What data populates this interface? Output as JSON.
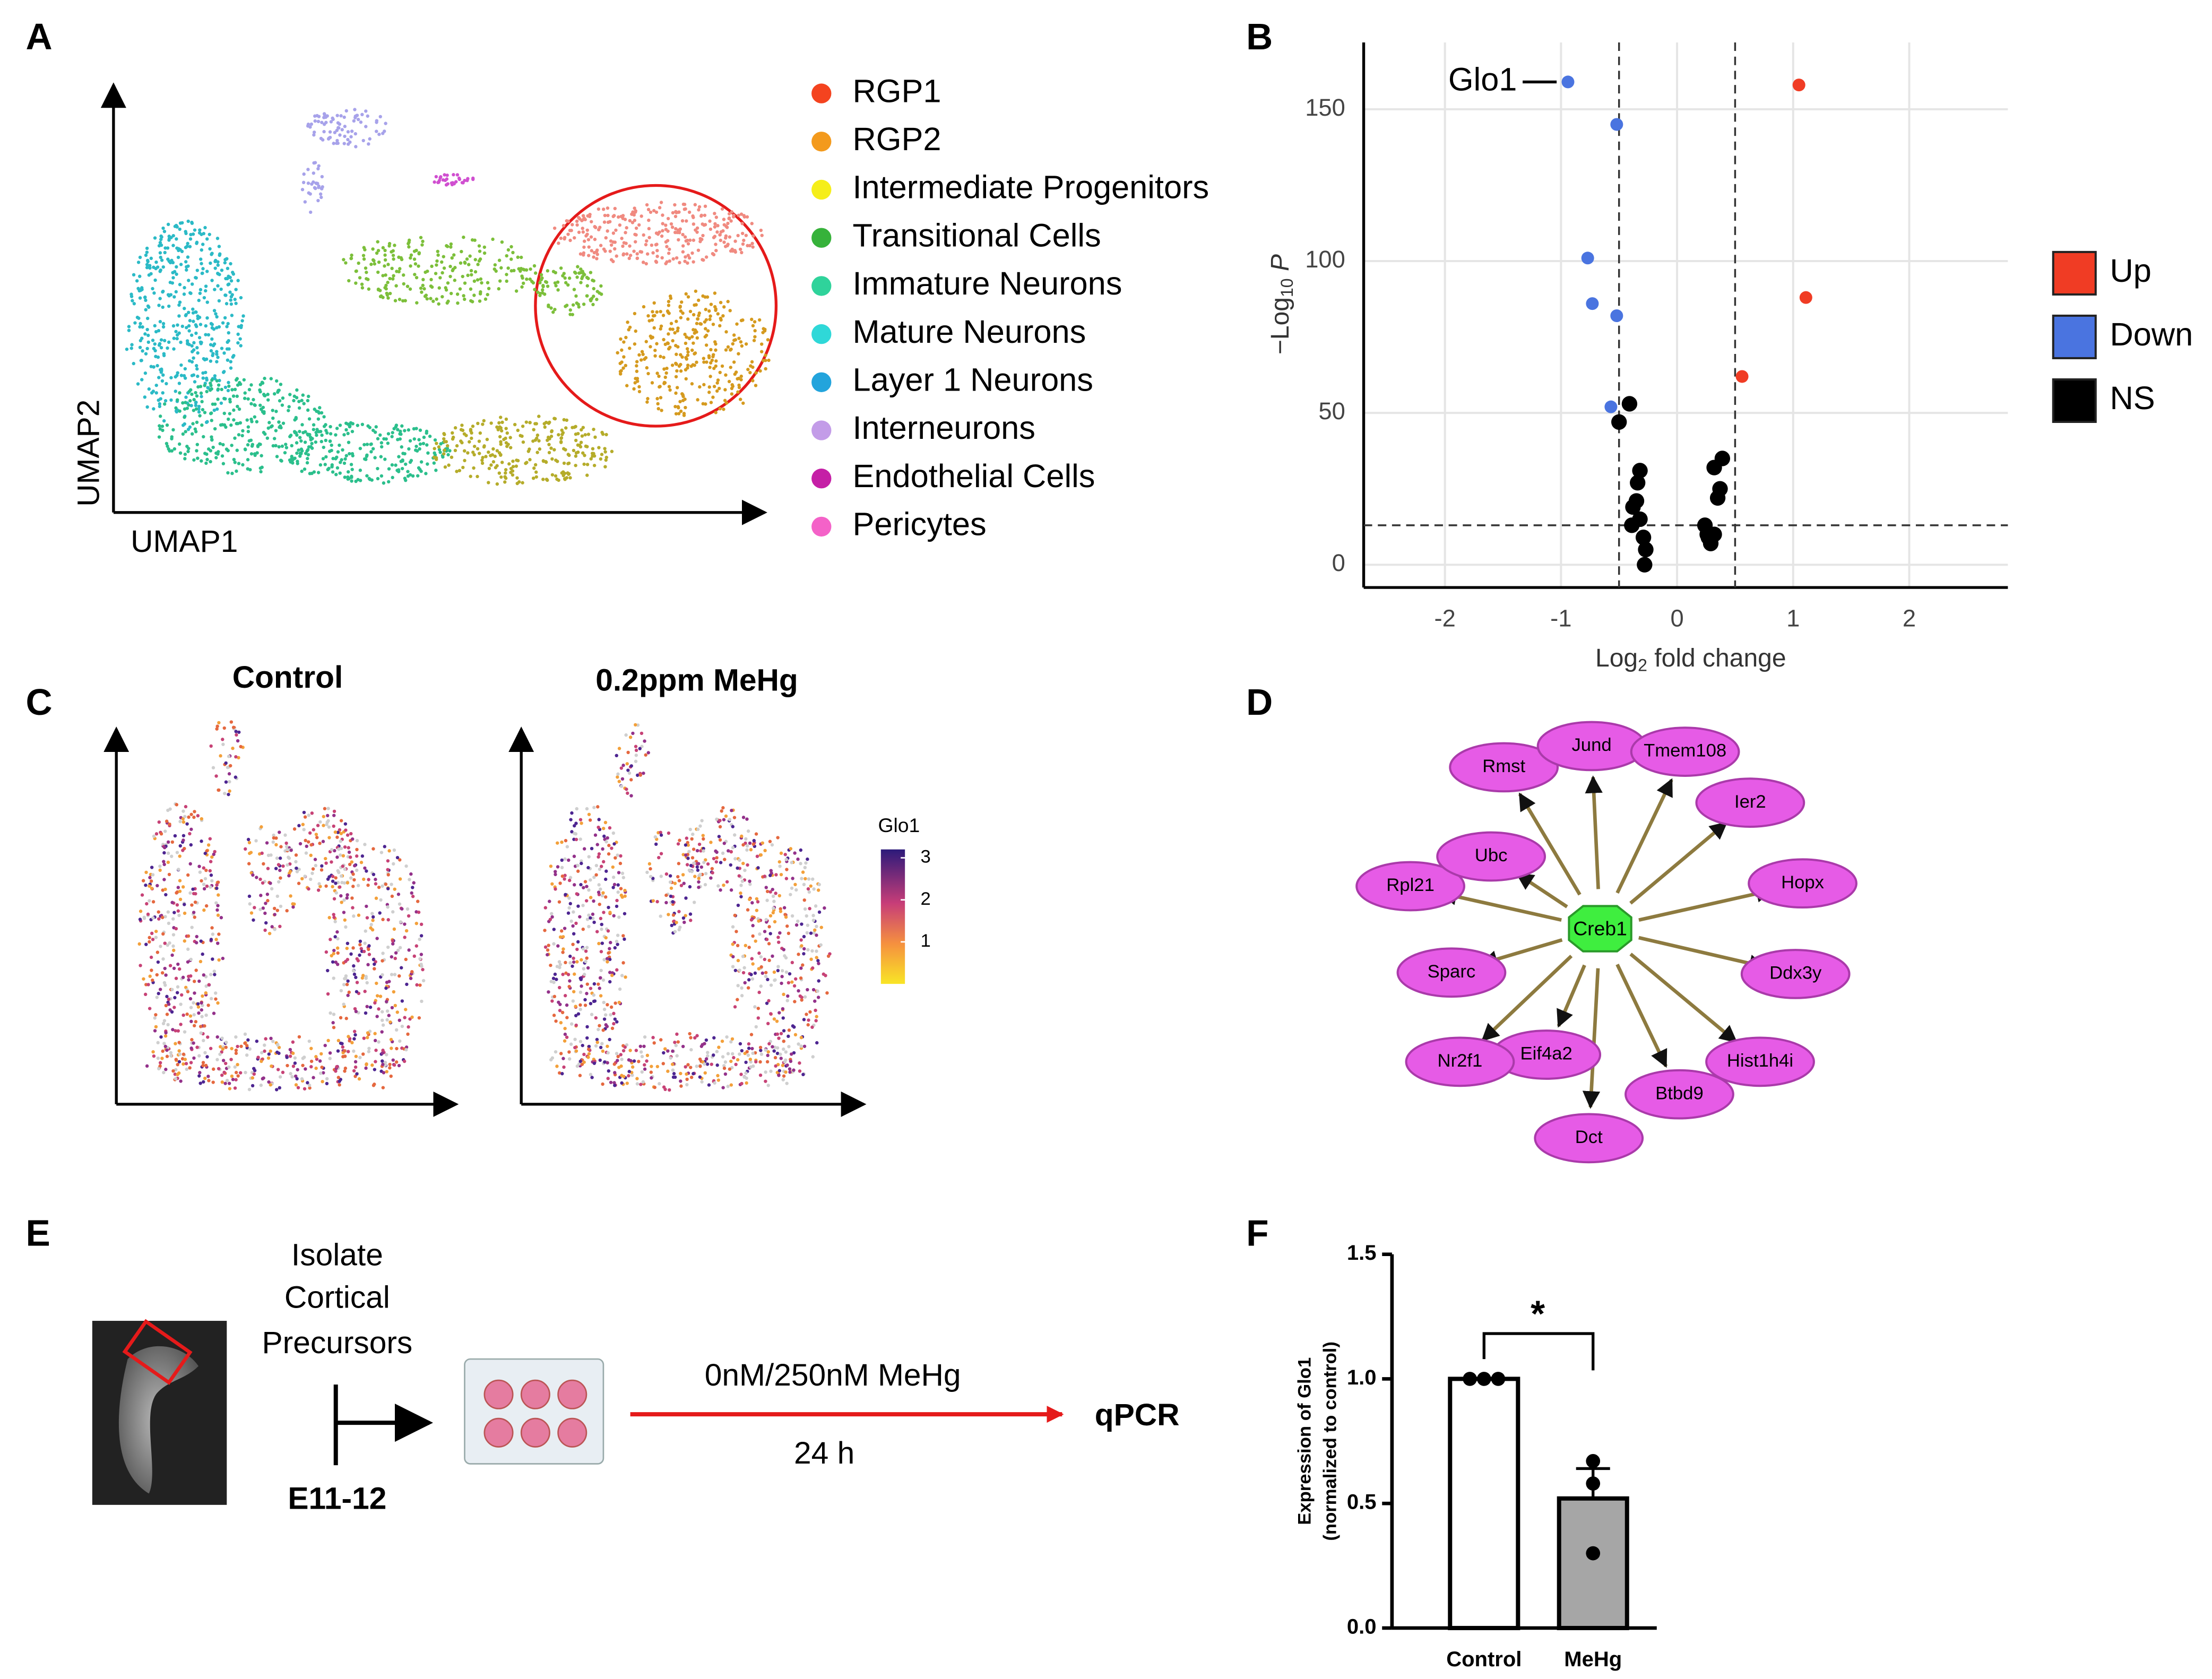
{
  "panel_labels": [
    "A",
    "B",
    "C",
    "D",
    "E",
    "F"
  ],
  "umap": {
    "x_label": "UMAP1",
    "y_label": "UMAP2",
    "legend": [
      {
        "name": "RGP1",
        "color": "#f4431f"
      },
      {
        "name": "RGP2",
        "color": "#f39a1d"
      },
      {
        "name": "Intermediate Progenitors",
        "color": "#f5ee1a"
      },
      {
        "name": "Transitional Cells",
        "color": "#36b23a"
      },
      {
        "name": "Immature Neurons",
        "color": "#2fd39b"
      },
      {
        "name": "Mature Neurons",
        "color": "#2fd8d8"
      },
      {
        "name": "Layer 1 Neurons",
        "color": "#23a4dc"
      },
      {
        "name": "Interneurons",
        "color": "#c39ce8"
      },
      {
        "name": "Endothelial Cells",
        "color": "#c51fa6"
      },
      {
        "name": "Pericytes",
        "color": "#f462c8"
      }
    ]
  },
  "feature_plot": {
    "titles": [
      "Control",
      "0.2ppm MeHg"
    ],
    "colorbar_title": "Glo1",
    "colorbar_lim": [
      0,
      3.2
    ],
    "colorbar_ticks": [
      1,
      2,
      3
    ]
  },
  "network": {
    "center": "Creb1",
    "nodes": [
      "Rmst",
      "Jund",
      "Tmem108",
      "Ier2",
      "Hopx",
      "Ddx3y",
      "Hist1h4i",
      "Btbd9",
      "Dct",
      "Eif4a2",
      "Nr2f1",
      "Sparc",
      "Rpl21",
      "Ubc"
    ]
  },
  "workflow": {
    "isolate_lines": [
      "Isolate",
      "Cortical",
      "Precursors"
    ],
    "stage": "E11-12",
    "treatment": "0nM/250nM MeHg",
    "duration": "24 h",
    "readout": "qPCR"
  },
  "chart_data": [
    {
      "type": "scatter",
      "xlabel": [
        "Log",
        "2",
        " fold change"
      ],
      "ylabel": [
        "−Log",
        "10",
        " ",
        "P"
      ],
      "xlim": [
        -2.7,
        2.85
      ],
      "ylim": [
        -7.5,
        172
      ],
      "xticks": [
        -2,
        -1,
        0,
        1,
        2
      ],
      "yticks": [
        0,
        50,
        100,
        150
      ],
      "grid": true,
      "vlines": [
        -0.5,
        0.5
      ],
      "hline": 13,
      "annotation": {
        "text": "Glo1",
        "series": 1,
        "index": 0
      },
      "series": [
        {
          "name": "Up",
          "color": "#f03c24",
          "x": [
            1.05,
            1.11,
            0.56
          ],
          "y": [
            158,
            88,
            62
          ]
        },
        {
          "name": "Down",
          "color": "#4a74e0",
          "x": [
            -0.94,
            -0.52,
            -0.77,
            -0.73,
            -0.52,
            -0.57
          ],
          "y": [
            159,
            145,
            101,
            86,
            82,
            52
          ]
        },
        {
          "name": "NS",
          "color": "#000000",
          "x": [
            -0.41,
            -0.5,
            -0.32,
            -0.34,
            -0.35,
            -0.38,
            -0.32,
            -0.29,
            -0.27,
            -0.28,
            -0.39,
            0.39,
            0.32,
            0.37,
            0.35,
            0.24,
            0.26,
            0.32,
            0.29,
            0.27
          ],
          "y": [
            53,
            47,
            31,
            27,
            21,
            19,
            15,
            9,
            5,
            0,
            13,
            35,
            32,
            25,
            22,
            13,
            10,
            10,
            7,
            9
          ]
        }
      ]
    },
    {
      "type": "bar",
      "ylabel": [
        "Expression of Glo1",
        "(normalized to control)"
      ],
      "categories": [
        "Control",
        "MeHg"
      ],
      "values": [
        1.0,
        0.52
      ],
      "errors": [
        0,
        0.12
      ],
      "colors": [
        "#ffffff",
        "#a6a6a6"
      ],
      "points": [
        [
          1,
          1,
          1
        ],
        [
          0.67,
          0.58,
          0.3
        ]
      ],
      "ylim": [
        0,
        1.5
      ],
      "yticks": [
        {
          "value": 0,
          "label": "0.0"
        },
        {
          "value": 0.5,
          "label": "0.5"
        },
        {
          "value": 1,
          "label": "1.0"
        },
        {
          "value": 1.5,
          "label": "1.5"
        }
      ],
      "significance": "*"
    }
  ]
}
